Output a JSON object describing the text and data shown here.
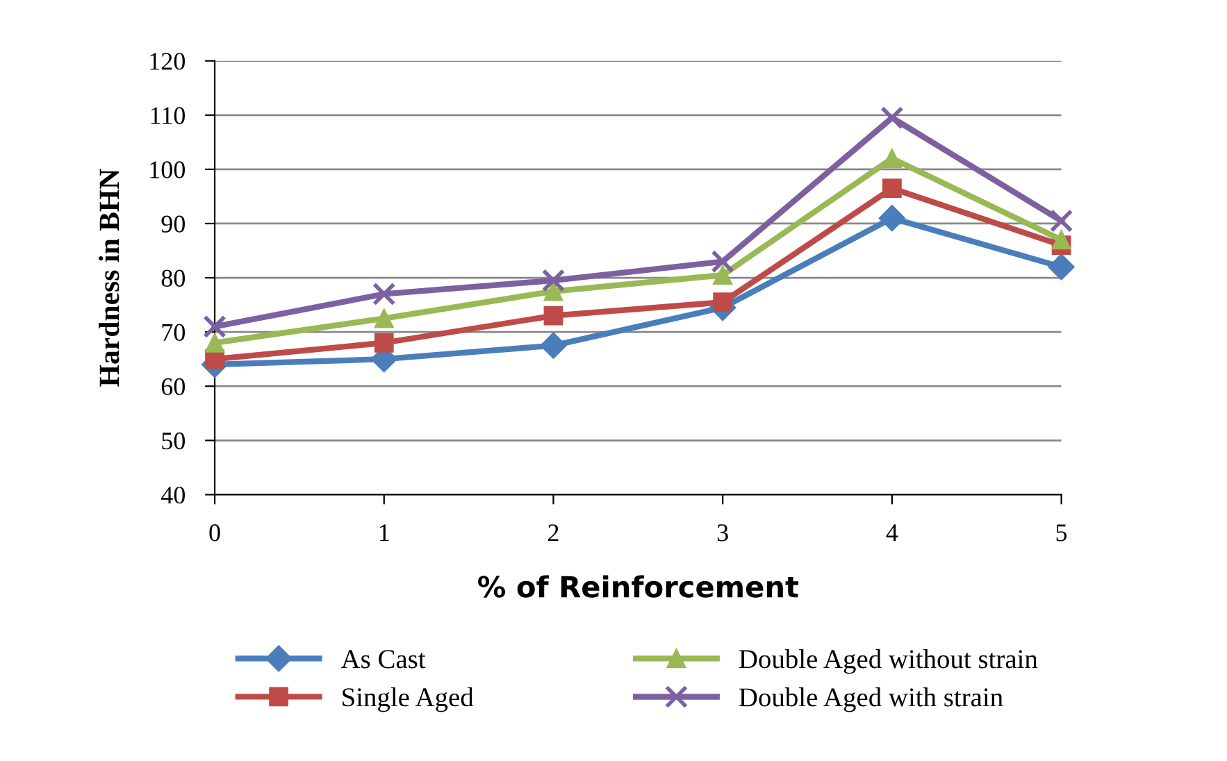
{
  "chart_data": {
    "type": "line",
    "xlabel": "% of Reinforcement",
    "ylabel": "Hardness in BHN",
    "categories": [
      "0",
      "1",
      "2",
      "3",
      "4",
      "5"
    ],
    "series": [
      {
        "name": "As Cast",
        "color": "#4a7ebb",
        "marker": "diamond",
        "values": [
          64,
          65,
          67.5,
          74.5,
          91,
          82
        ]
      },
      {
        "name": "Single Aged",
        "color": "#be4b48",
        "marker": "square",
        "values": [
          65,
          68,
          73,
          75.5,
          96.5,
          86
        ]
      },
      {
        "name": "Double Aged without strain",
        "color": "#98b954",
        "marker": "triangle",
        "values": [
          68,
          72.5,
          77.5,
          80.5,
          102,
          87
        ]
      },
      {
        "name": "Double Aged with strain",
        "color": "#7d60a0",
        "marker": "cross",
        "values": [
          71,
          77,
          79.5,
          83,
          109.5,
          90.5
        ]
      }
    ],
    "ylim": [
      40,
      120
    ],
    "yticks": [
      40,
      50,
      60,
      70,
      80,
      90,
      100,
      110,
      120
    ],
    "grid": "y",
    "legend": "bottom",
    "line_style": "solid"
  }
}
